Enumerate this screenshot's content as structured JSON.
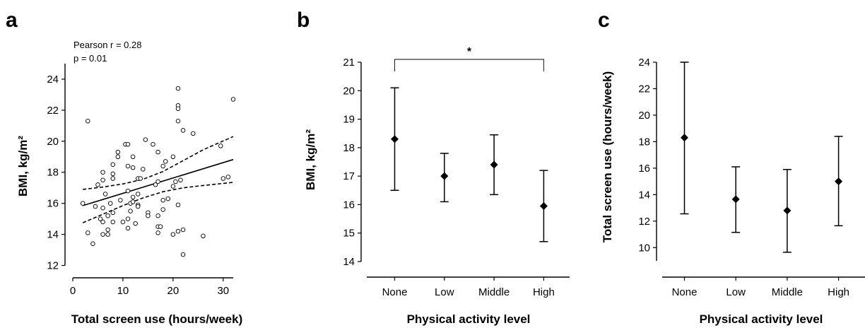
{
  "chart_data": [
    {
      "panel": "a",
      "type": "scatter",
      "xlabel": "Total screen use (hours/week)",
      "ylabel": "BMI, kg/m²",
      "xlim": [
        0,
        32
      ],
      "ylim": [
        12,
        25
      ],
      "xticks": [
        0,
        10,
        20,
        30
      ],
      "yticks": [
        12,
        14,
        16,
        18,
        20,
        22,
        24
      ],
      "annotations": [
        "Pearson r = 0.28",
        "p = 0.01"
      ],
      "points": [
        {
          "x": 2,
          "y": 16.0
        },
        {
          "x": 3,
          "y": 21.3
        },
        {
          "x": 3,
          "y": 14.1
        },
        {
          "x": 4,
          "y": 13.4
        },
        {
          "x": 4.5,
          "y": 15.8
        },
        {
          "x": 5,
          "y": 17.2
        },
        {
          "x": 5.5,
          "y": 15.0
        },
        {
          "x": 6,
          "y": 18.0
        },
        {
          "x": 6,
          "y": 17.5
        },
        {
          "x": 6,
          "y": 15.7
        },
        {
          "x": 6,
          "y": 14.8
        },
        {
          "x": 6,
          "y": 14.0
        },
        {
          "x": 6.5,
          "y": 16.6
        },
        {
          "x": 7,
          "y": 15.2
        },
        {
          "x": 7,
          "y": 14.3
        },
        {
          "x": 7,
          "y": 14.0
        },
        {
          "x": 7.5,
          "y": 16.0
        },
        {
          "x": 8,
          "y": 18.5
        },
        {
          "x": 8,
          "y": 17.9
        },
        {
          "x": 8,
          "y": 17.6
        },
        {
          "x": 8,
          "y": 15.4
        },
        {
          "x": 8,
          "y": 14.8
        },
        {
          "x": 9,
          "y": 19.3
        },
        {
          "x": 9,
          "y": 19.0
        },
        {
          "x": 9.5,
          "y": 16.2
        },
        {
          "x": 10,
          "y": 14.8
        },
        {
          "x": 10.5,
          "y": 19.8
        },
        {
          "x": 11,
          "y": 19.8
        },
        {
          "x": 11,
          "y": 18.4
        },
        {
          "x": 11,
          "y": 16.8
        },
        {
          "x": 11,
          "y": 15.0
        },
        {
          "x": 11,
          "y": 14.4
        },
        {
          "x": 11.5,
          "y": 16.0
        },
        {
          "x": 11.5,
          "y": 15.5
        },
        {
          "x": 12,
          "y": 19.0
        },
        {
          "x": 12,
          "y": 18.3
        },
        {
          "x": 12,
          "y": 16.4
        },
        {
          "x": 12,
          "y": 16.1
        },
        {
          "x": 12.5,
          "y": 14.7
        },
        {
          "x": 13,
          "y": 17.6
        },
        {
          "x": 13,
          "y": 16.6
        },
        {
          "x": 13,
          "y": 15.9
        },
        {
          "x": 13,
          "y": 15.8
        },
        {
          "x": 13.5,
          "y": 17.6
        },
        {
          "x": 14,
          "y": 18.2
        },
        {
          "x": 14.5,
          "y": 20.1
        },
        {
          "x": 15,
          "y": 15.4
        },
        {
          "x": 15,
          "y": 15.2
        },
        {
          "x": 16,
          "y": 19.8
        },
        {
          "x": 16.5,
          "y": 17.2
        },
        {
          "x": 17,
          "y": 19.3
        },
        {
          "x": 17,
          "y": 17.4
        },
        {
          "x": 17,
          "y": 15.2
        },
        {
          "x": 17,
          "y": 14.5
        },
        {
          "x": 17,
          "y": 14.1
        },
        {
          "x": 17.5,
          "y": 14.5
        },
        {
          "x": 18,
          "y": 18.4
        },
        {
          "x": 18,
          "y": 15.6
        },
        {
          "x": 18,
          "y": 16.2
        },
        {
          "x": 18.5,
          "y": 18.7
        },
        {
          "x": 19,
          "y": 16.3
        },
        {
          "x": 20,
          "y": 19.0
        },
        {
          "x": 20,
          "y": 17.1
        },
        {
          "x": 20,
          "y": 14.0
        },
        {
          "x": 20.5,
          "y": 17.4
        },
        {
          "x": 21,
          "y": 23.4
        },
        {
          "x": 21,
          "y": 22.3
        },
        {
          "x": 21,
          "y": 22.1
        },
        {
          "x": 21,
          "y": 21.3
        },
        {
          "x": 21,
          "y": 15.9
        },
        {
          "x": 21,
          "y": 14.2
        },
        {
          "x": 21.5,
          "y": 17.5
        },
        {
          "x": 22,
          "y": 20.7
        },
        {
          "x": 22,
          "y": 14.3
        },
        {
          "x": 22,
          "y": 12.7
        },
        {
          "x": 24,
          "y": 20.5
        },
        {
          "x": 26,
          "y": 13.9
        },
        {
          "x": 29.5,
          "y": 19.7
        },
        {
          "x": 30,
          "y": 17.6
        },
        {
          "x": 31,
          "y": 17.7
        },
        {
          "x": 32,
          "y": 22.7
        }
      ],
      "fit_line": [
        {
          "x": 2,
          "y": 15.85
        },
        {
          "x": 32,
          "y": 18.82
        }
      ],
      "ci_upper": [
        {
          "x": 2,
          "y": 16.9
        },
        {
          "x": 6,
          "y": 17.05
        },
        {
          "x": 10,
          "y": 17.25
        },
        {
          "x": 14,
          "y": 17.55
        },
        {
          "x": 18,
          "y": 18.05
        },
        {
          "x": 22,
          "y": 18.75
        },
        {
          "x": 26,
          "y": 19.45
        },
        {
          "x": 32,
          "y": 20.3
        }
      ],
      "ci_lower": [
        {
          "x": 2,
          "y": 14.75
        },
        {
          "x": 6,
          "y": 15.3
        },
        {
          "x": 10,
          "y": 15.85
        },
        {
          "x": 14,
          "y": 16.35
        },
        {
          "x": 18,
          "y": 16.75
        },
        {
          "x": 22,
          "y": 17.0
        },
        {
          "x": 26,
          "y": 17.15
        },
        {
          "x": 32,
          "y": 17.35
        }
      ]
    },
    {
      "panel": "b",
      "type": "errorbar",
      "xlabel": "Physical activity level",
      "ylabel": "BMI, kg/m²",
      "categories": [
        "None",
        "Low",
        "Middle",
        "High"
      ],
      "values": [
        18.3,
        17.0,
        17.4,
        15.95
      ],
      "lower": [
        16.5,
        16.1,
        16.35,
        14.7
      ],
      "upper": [
        20.1,
        17.8,
        18.45,
        17.2
      ],
      "ylim": [
        14,
        21
      ],
      "yticks": [
        14,
        15,
        16,
        17,
        18,
        19,
        20,
        21
      ],
      "significance": {
        "from": "None",
        "to": "High",
        "label": "*"
      }
    },
    {
      "panel": "c",
      "type": "errorbar",
      "xlabel": "Physical activity level",
      "ylabel": "Total screen use (hours/week)",
      "categories": [
        "None",
        "Low",
        "Middle",
        "High"
      ],
      "values": [
        18.3,
        13.65,
        12.8,
        15.0
      ],
      "lower": [
        12.55,
        11.15,
        9.65,
        11.65
      ],
      "upper": [
        24.0,
        16.1,
        15.9,
        18.4
      ],
      "ylim": [
        9,
        24
      ],
      "yticks": [
        10,
        12,
        14,
        16,
        18,
        20,
        22,
        24
      ]
    }
  ]
}
